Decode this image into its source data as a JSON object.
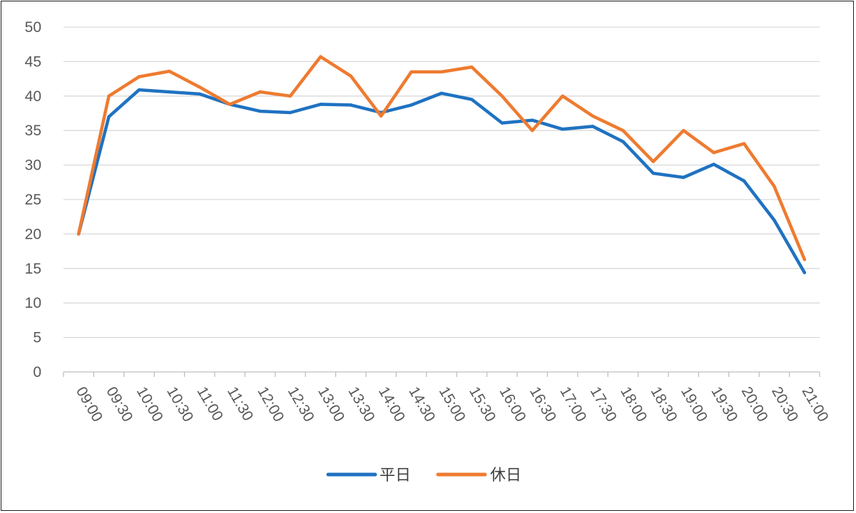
{
  "chart_data": {
    "type": "line",
    "title": "",
    "xlabel": "",
    "ylabel": "",
    "ylim": [
      0,
      50
    ],
    "yticks": [
      0,
      5,
      10,
      15,
      20,
      25,
      30,
      35,
      40,
      45,
      50
    ],
    "grid": true,
    "legend_position": "bottom",
    "categories": [
      "09:00",
      "09:30",
      "10:00",
      "10:30",
      "11:00",
      "11:30",
      "12:00",
      "12:30",
      "13:00",
      "13:30",
      "14:00",
      "14:30",
      "15:00",
      "15:30",
      "16:00",
      "16:30",
      "17:00",
      "17:30",
      "18:00",
      "18:30",
      "19:00",
      "19:30",
      "20:00",
      "20:30",
      "21:00"
    ],
    "series": [
      {
        "name": "平日",
        "color": "#1f72c1",
        "values": [
          20.0,
          37.0,
          40.9,
          40.6,
          40.3,
          38.8,
          37.8,
          37.6,
          38.8,
          38.7,
          37.6,
          38.7,
          40.4,
          39.5,
          36.1,
          36.5,
          35.2,
          35.6,
          33.4,
          28.8,
          28.2,
          30.1,
          27.7,
          22.0,
          14.4
        ]
      },
      {
        "name": "休日",
        "color": "#ee7b30",
        "values": [
          20.0,
          40.0,
          42.8,
          43.6,
          41.3,
          38.8,
          40.6,
          40.0,
          45.7,
          42.9,
          37.1,
          43.5,
          43.5,
          44.2,
          40.0,
          35.0,
          40.0,
          37.1,
          35.0,
          30.5,
          35.0,
          31.8,
          33.1,
          26.9,
          16.3
        ]
      }
    ]
  }
}
